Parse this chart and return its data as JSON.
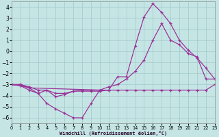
{
  "xlabel": "Windchill (Refroidissement éolien,°C)",
  "background_color": "#c5e5e5",
  "grid_color": "#a0c8c8",
  "line_color": "#993399",
  "xlim": [
    0,
    23
  ],
  "ylim": [
    -6.5,
    4.5
  ],
  "yticks": [
    -6,
    -5,
    -4,
    -3,
    -2,
    -1,
    0,
    1,
    2,
    3,
    4
  ],
  "xticks": [
    0,
    1,
    2,
    3,
    4,
    5,
    6,
    7,
    8,
    9,
    10,
    11,
    12,
    13,
    14,
    15,
    16,
    17,
    18,
    19,
    20,
    21,
    22,
    23
  ],
  "line1_x": [
    0,
    1,
    2,
    3,
    4,
    5,
    6,
    7,
    8,
    9,
    10
  ],
  "line1_y": [
    -3.0,
    -3.1,
    -3.5,
    -3.8,
    -4.7,
    -5.2,
    -5.6,
    -6.0,
    -6.0,
    -4.7,
    -3.5
  ],
  "line2_x": [
    0,
    1,
    2,
    3,
    4,
    5,
    6,
    7,
    8,
    9,
    10,
    11,
    12,
    13,
    14,
    15,
    16,
    17,
    18,
    19,
    20,
    21,
    22,
    23
  ],
  "line2_y": [
    -3.0,
    -3.0,
    -3.2,
    -3.5,
    -3.5,
    -3.8,
    -3.8,
    -3.6,
    -3.5,
    -3.5,
    -3.5,
    -3.5,
    -3.5,
    -3.5,
    -3.5,
    -3.5,
    -3.5,
    -3.5,
    -3.5,
    -3.5,
    -3.5,
    -3.5,
    -3.5,
    -3.0
  ],
  "line3_x": [
    0,
    1,
    2,
    3,
    4,
    5,
    6,
    7,
    8,
    9,
    10,
    11,
    12,
    13,
    14,
    15,
    16,
    17,
    18,
    19,
    20,
    21,
    22,
    23
  ],
  "line3_y": [
    -3.0,
    -3.1,
    -3.3,
    -3.8,
    -3.5,
    -4.1,
    -3.9,
    -3.6,
    -3.6,
    -3.6,
    -3.6,
    -3.5,
    -2.3,
    -2.3,
    0.5,
    3.1,
    4.3,
    3.5,
    2.5,
    1.0,
    0.1,
    -0.6,
    -1.5,
    -2.5
  ],
  "line4_x": [
    0,
    1,
    2,
    10,
    11,
    12,
    13,
    14,
    15,
    16,
    17,
    18,
    19,
    20,
    21,
    22,
    23
  ],
  "line4_y": [
    -3.0,
    -3.0,
    -3.3,
    -3.5,
    -3.2,
    -3.0,
    -2.5,
    -1.8,
    -0.8,
    1.0,
    2.5,
    1.0,
    0.6,
    -0.2,
    -0.5,
    -2.5,
    -2.5
  ]
}
